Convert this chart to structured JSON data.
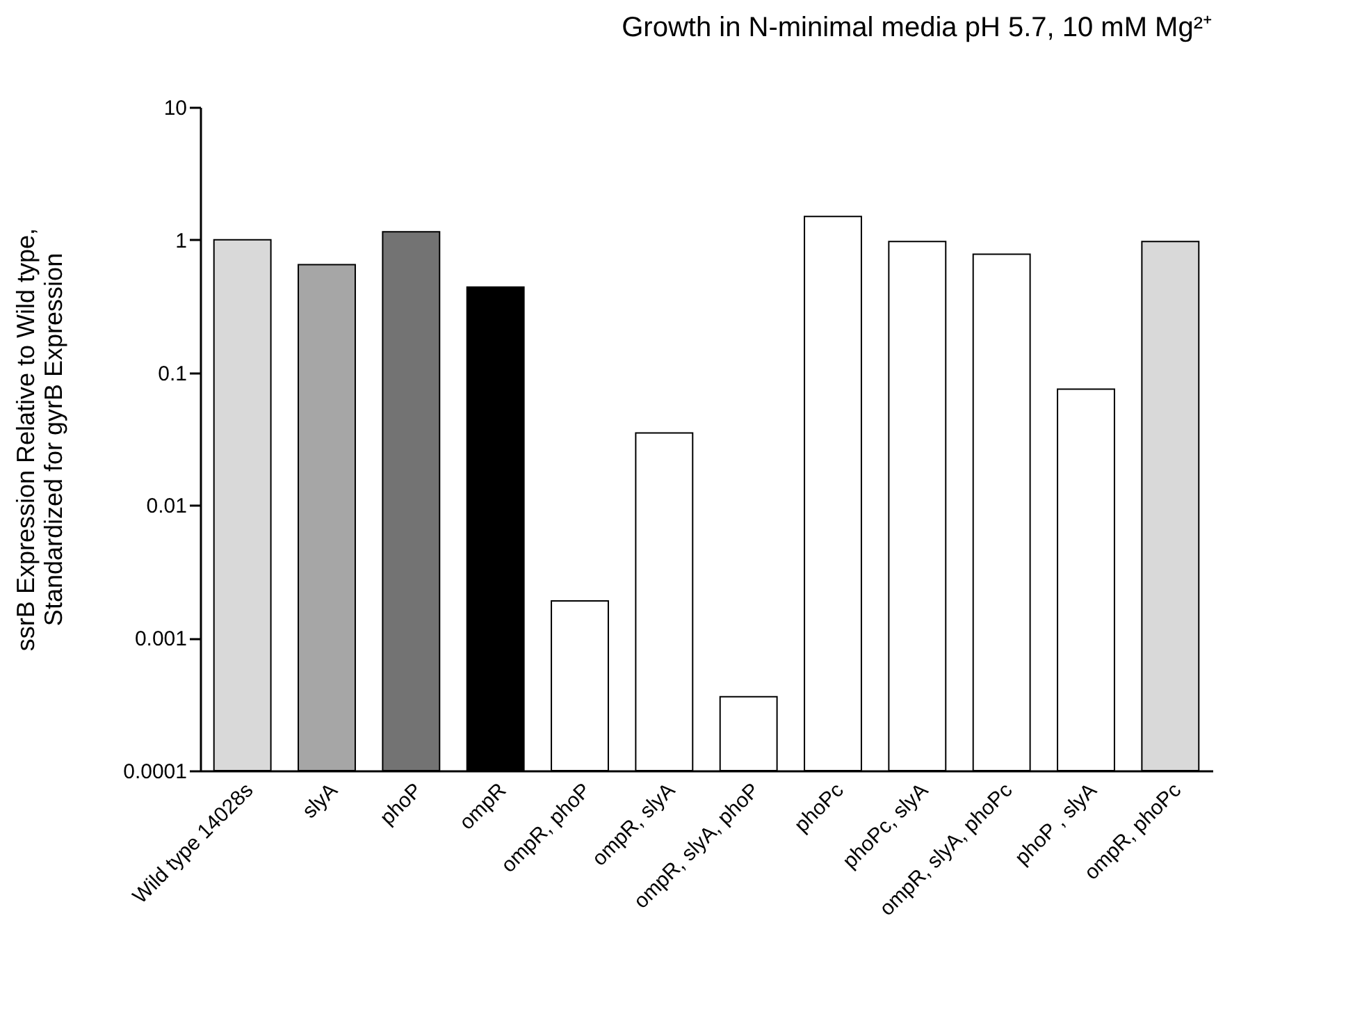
{
  "chart_data": {
    "type": "bar",
    "title": "Growth in N-minimal media  pH 5.7, 10 mM Mg²⁺",
    "ylabel": "ssrB Expression Relative to Wild type, Standardized for gyrB Expression",
    "categories": [
      "Wild type 14028s",
      "slyA",
      "phoP",
      "ompR",
      "ompR, phoP",
      "ompR, slyA",
      "ompR, slyA, phoP",
      "phoPc",
      "phoPc, slyA",
      "ompR, slyA, phoPc",
      "phoP , slyA",
      "ompR, phoPc"
    ],
    "values": [
      1.0,
      0.65,
      1.15,
      0.44,
      0.0019,
      0.035,
      0.00036,
      1.5,
      0.97,
      0.78,
      0.075,
      0.97
    ],
    "colors": [
      "#d9d9d9",
      "#a6a6a6",
      "#737373",
      "#000000",
      "#ffffff",
      "#ffffff",
      "#ffffff",
      "#ffffff",
      "#ffffff",
      "#ffffff",
      "#ffffff",
      "#d9d9d9"
    ],
    "log": "y",
    "ylim": [
      0.0001,
      10
    ],
    "yticks": [
      0.0001,
      0.001,
      0.01,
      0.1,
      1,
      10
    ],
    "grid": false,
    "legend": false
  }
}
